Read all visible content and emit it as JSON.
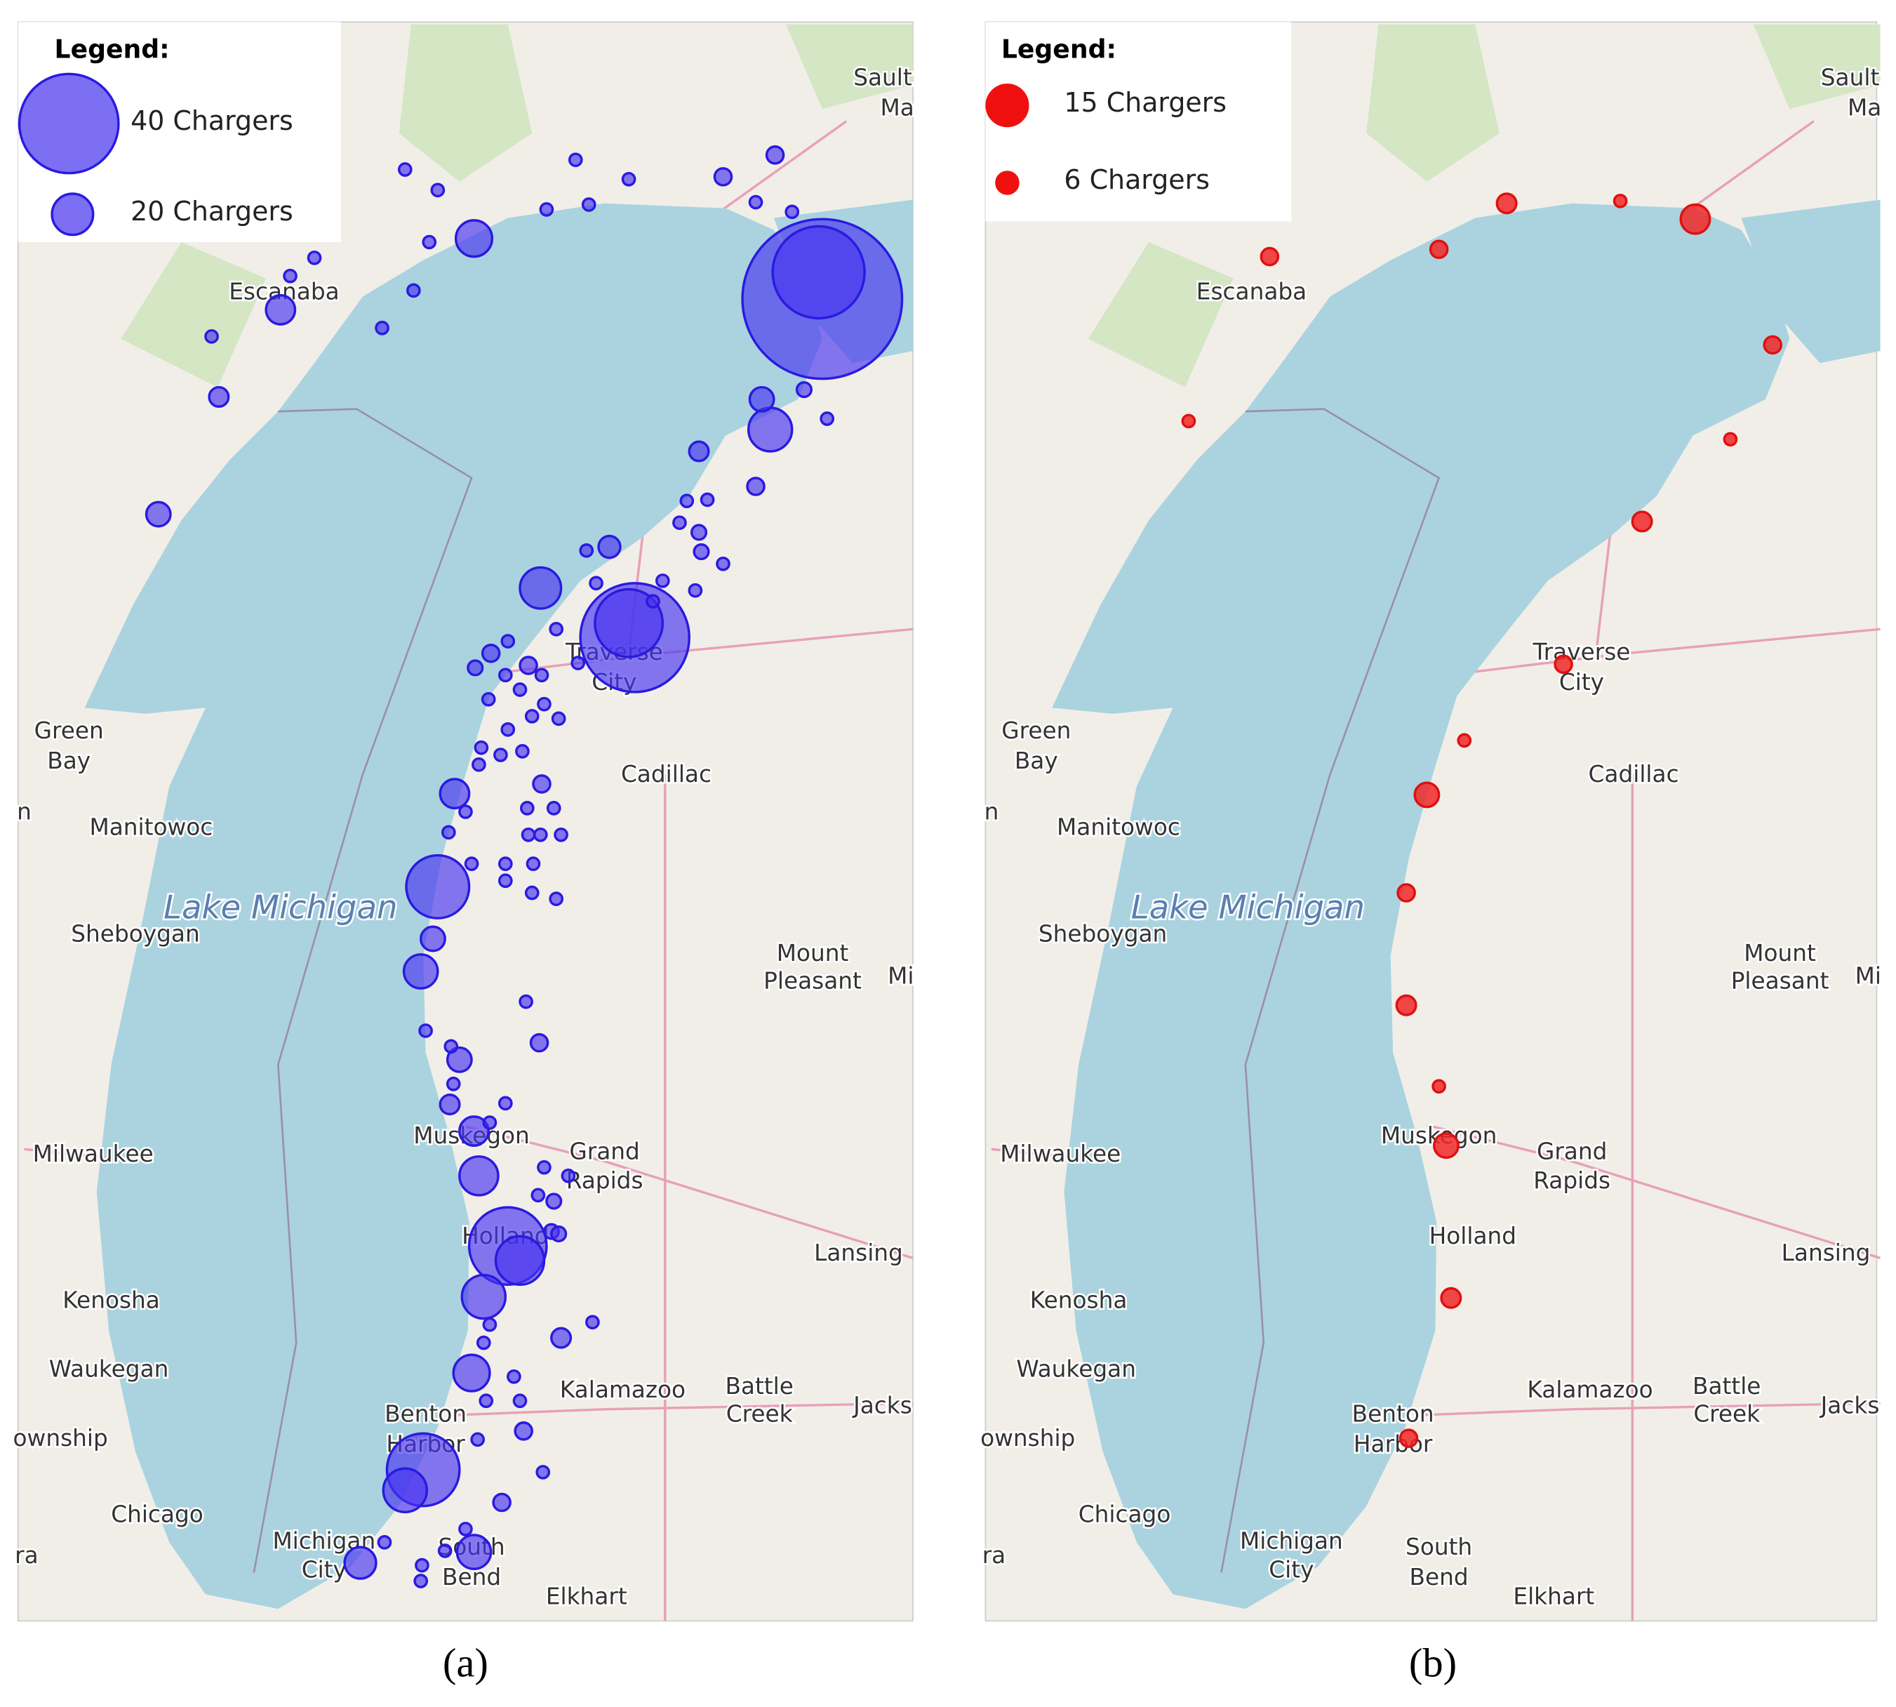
{
  "panels": [
    {
      "legend": {
        "title": "Legend:",
        "items": [
          "40 Chargers",
          "20 Chargers"
        ]
      },
      "caption": "(a)"
    },
    {
      "legend": {
        "title": "Legend:",
        "items": [
          "15 Chargers",
          "6 Chargers"
        ]
      },
      "caption": "(b)"
    }
  ],
  "map_labels": {
    "cities": [
      "Sault",
      "Ma",
      "Escanaba",
      "Green",
      "Bay",
      "Manitowoc",
      "Sheboygan",
      "Milwaukee",
      "Kenosha",
      "Waukegan",
      "Chicago",
      "ownship",
      "ra",
      "n",
      "Cadillac",
      "Mount",
      "Pleasant",
      "Mi",
      "Traverse",
      "City",
      "Muskegon",
      "Grand",
      "Rapids",
      "Holland",
      "Lansing",
      "Kalamazoo",
      "Battle",
      "Creek",
      "Jacks",
      "Benton",
      "Harbor",
      "Michigan",
      "City",
      "South",
      "Bend",
      "Elkhart"
    ],
    "lake": "Lake Michigan"
  }
}
